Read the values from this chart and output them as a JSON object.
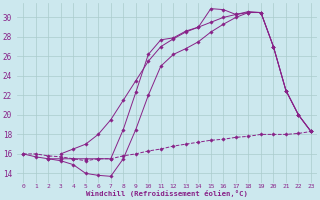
{
  "bg_color": "#cce8ee",
  "line_color": "#882288",
  "grid_color": "#aacccc",
  "xlabel": "Windchill (Refroidissement éolien,°C)",
  "xlim": [
    -0.5,
    23.5
  ],
  "ylim": [
    13.0,
    31.5
  ],
  "yticks": [
    14,
    16,
    18,
    20,
    22,
    24,
    26,
    28,
    30
  ],
  "curve1_x": [
    0,
    1,
    2,
    3,
    4,
    5,
    6,
    7,
    8,
    9,
    10,
    11,
    12,
    13,
    14,
    15,
    16,
    17,
    18,
    19,
    20,
    21,
    22,
    23
  ],
  "curve1_y": [
    16.0,
    15.7,
    15.5,
    15.5,
    15.5,
    15.5,
    15.5,
    15.5,
    18.5,
    22.3,
    26.2,
    27.7,
    27.9,
    28.6,
    29.0,
    30.9,
    30.8,
    30.3,
    30.6,
    30.5,
    27.0,
    22.5,
    20.0,
    18.3
  ],
  "curve2_x": [
    2,
    3,
    4,
    5,
    6,
    7,
    8,
    9,
    10,
    11,
    12,
    13,
    14,
    15,
    16,
    17,
    18,
    19,
    20,
    21,
    22,
    23
  ],
  "curve2_y": [
    15.5,
    15.3,
    14.9,
    14.0,
    13.8,
    13.7,
    15.5,
    18.5,
    22.0,
    25.0,
    26.2,
    26.8,
    27.5,
    28.5,
    29.3,
    30.0,
    30.5,
    30.5,
    27.0,
    22.5,
    20.0,
    18.3
  ],
  "curve3_x": [
    3,
    4,
    5,
    6,
    7,
    8,
    9,
    10,
    11,
    12,
    13,
    14,
    15,
    16,
    17,
    18,
    19,
    20,
    21,
    22,
    23
  ],
  "curve3_y": [
    16.0,
    16.5,
    17.0,
    18.0,
    19.5,
    21.5,
    23.5,
    25.5,
    27.0,
    27.8,
    28.5,
    29.0,
    29.5,
    30.0,
    30.3,
    30.5,
    30.5,
    27.0,
    22.5,
    20.0,
    18.3
  ],
  "curve4_x": [
    0,
    1,
    2,
    3,
    4,
    5,
    6,
    7,
    8,
    9,
    10,
    11,
    12,
    13,
    14,
    15,
    16,
    17,
    18,
    19,
    20,
    21,
    22,
    23
  ],
  "curve4_y": [
    16.0,
    16.0,
    15.8,
    15.7,
    15.5,
    15.3,
    15.5,
    15.5,
    15.8,
    16.0,
    16.3,
    16.5,
    16.8,
    17.0,
    17.2,
    17.4,
    17.5,
    17.7,
    17.8,
    18.0,
    18.0,
    18.0,
    18.1,
    18.3
  ]
}
